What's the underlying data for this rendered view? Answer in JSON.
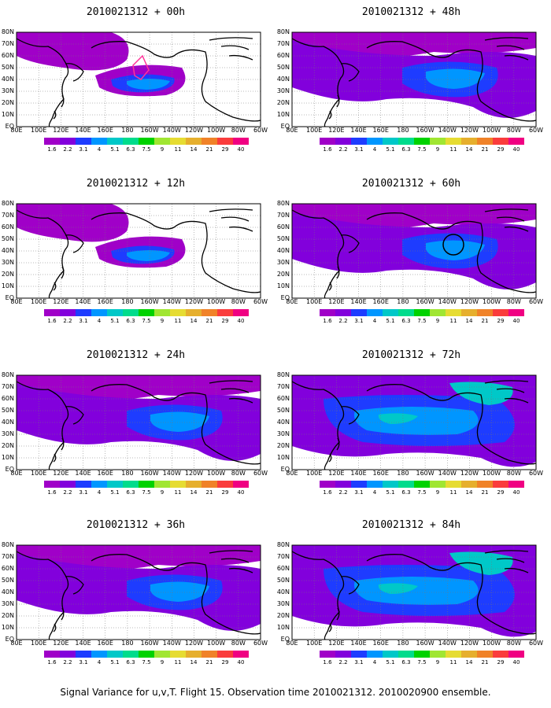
{
  "colors": {
    "scale": [
      "#a000c8",
      "#8200dc",
      "#1e3cff",
      "#0096ff",
      "#00c8c8",
      "#00dc8c",
      "#00d200",
      "#a0e632",
      "#e6dc32",
      "#e6af2d",
      "#f08228",
      "#fa3c3c",
      "#f00082"
    ]
  },
  "colorbar": {
    "labels": [
      "1.6",
      "2.2",
      "3.1",
      "4",
      "5.1",
      "6.3",
      "7.5",
      "9",
      "11",
      "14",
      "21",
      "29",
      "40"
    ]
  },
  "axes": {
    "y_labels": [
      "80N",
      "70N",
      "60N",
      "50N",
      "40N",
      "30N",
      "20N",
      "10N",
      "EQ"
    ],
    "x_labels": [
      "80E",
      "100E",
      "120E",
      "140E",
      "160E",
      "180",
      "160W",
      "140W",
      "120W",
      "100W",
      "80W",
      "60W"
    ]
  },
  "panels": [
    {
      "title": "2010021312 + 00h",
      "level": "low",
      "marker": "flight"
    },
    {
      "title": "2010021312 + 48h",
      "level": "mid",
      "marker": ""
    },
    {
      "title": "2010021312 + 12h",
      "level": "low",
      "marker": ""
    },
    {
      "title": "2010021312 + 60h",
      "level": "mid",
      "marker": "circle"
    },
    {
      "title": "2010021312 + 24h",
      "level": "mid",
      "marker": ""
    },
    {
      "title": "2010021312 + 72h",
      "level": "high",
      "marker": ""
    },
    {
      "title": "2010021312 + 36h",
      "level": "mid",
      "marker": ""
    },
    {
      "title": "2010021312 + 84h",
      "level": "high",
      "marker": ""
    }
  ],
  "caption": "Signal Variance for u,v,T. Flight 15. Observation time 2010021312. 2010020900 ensemble."
}
